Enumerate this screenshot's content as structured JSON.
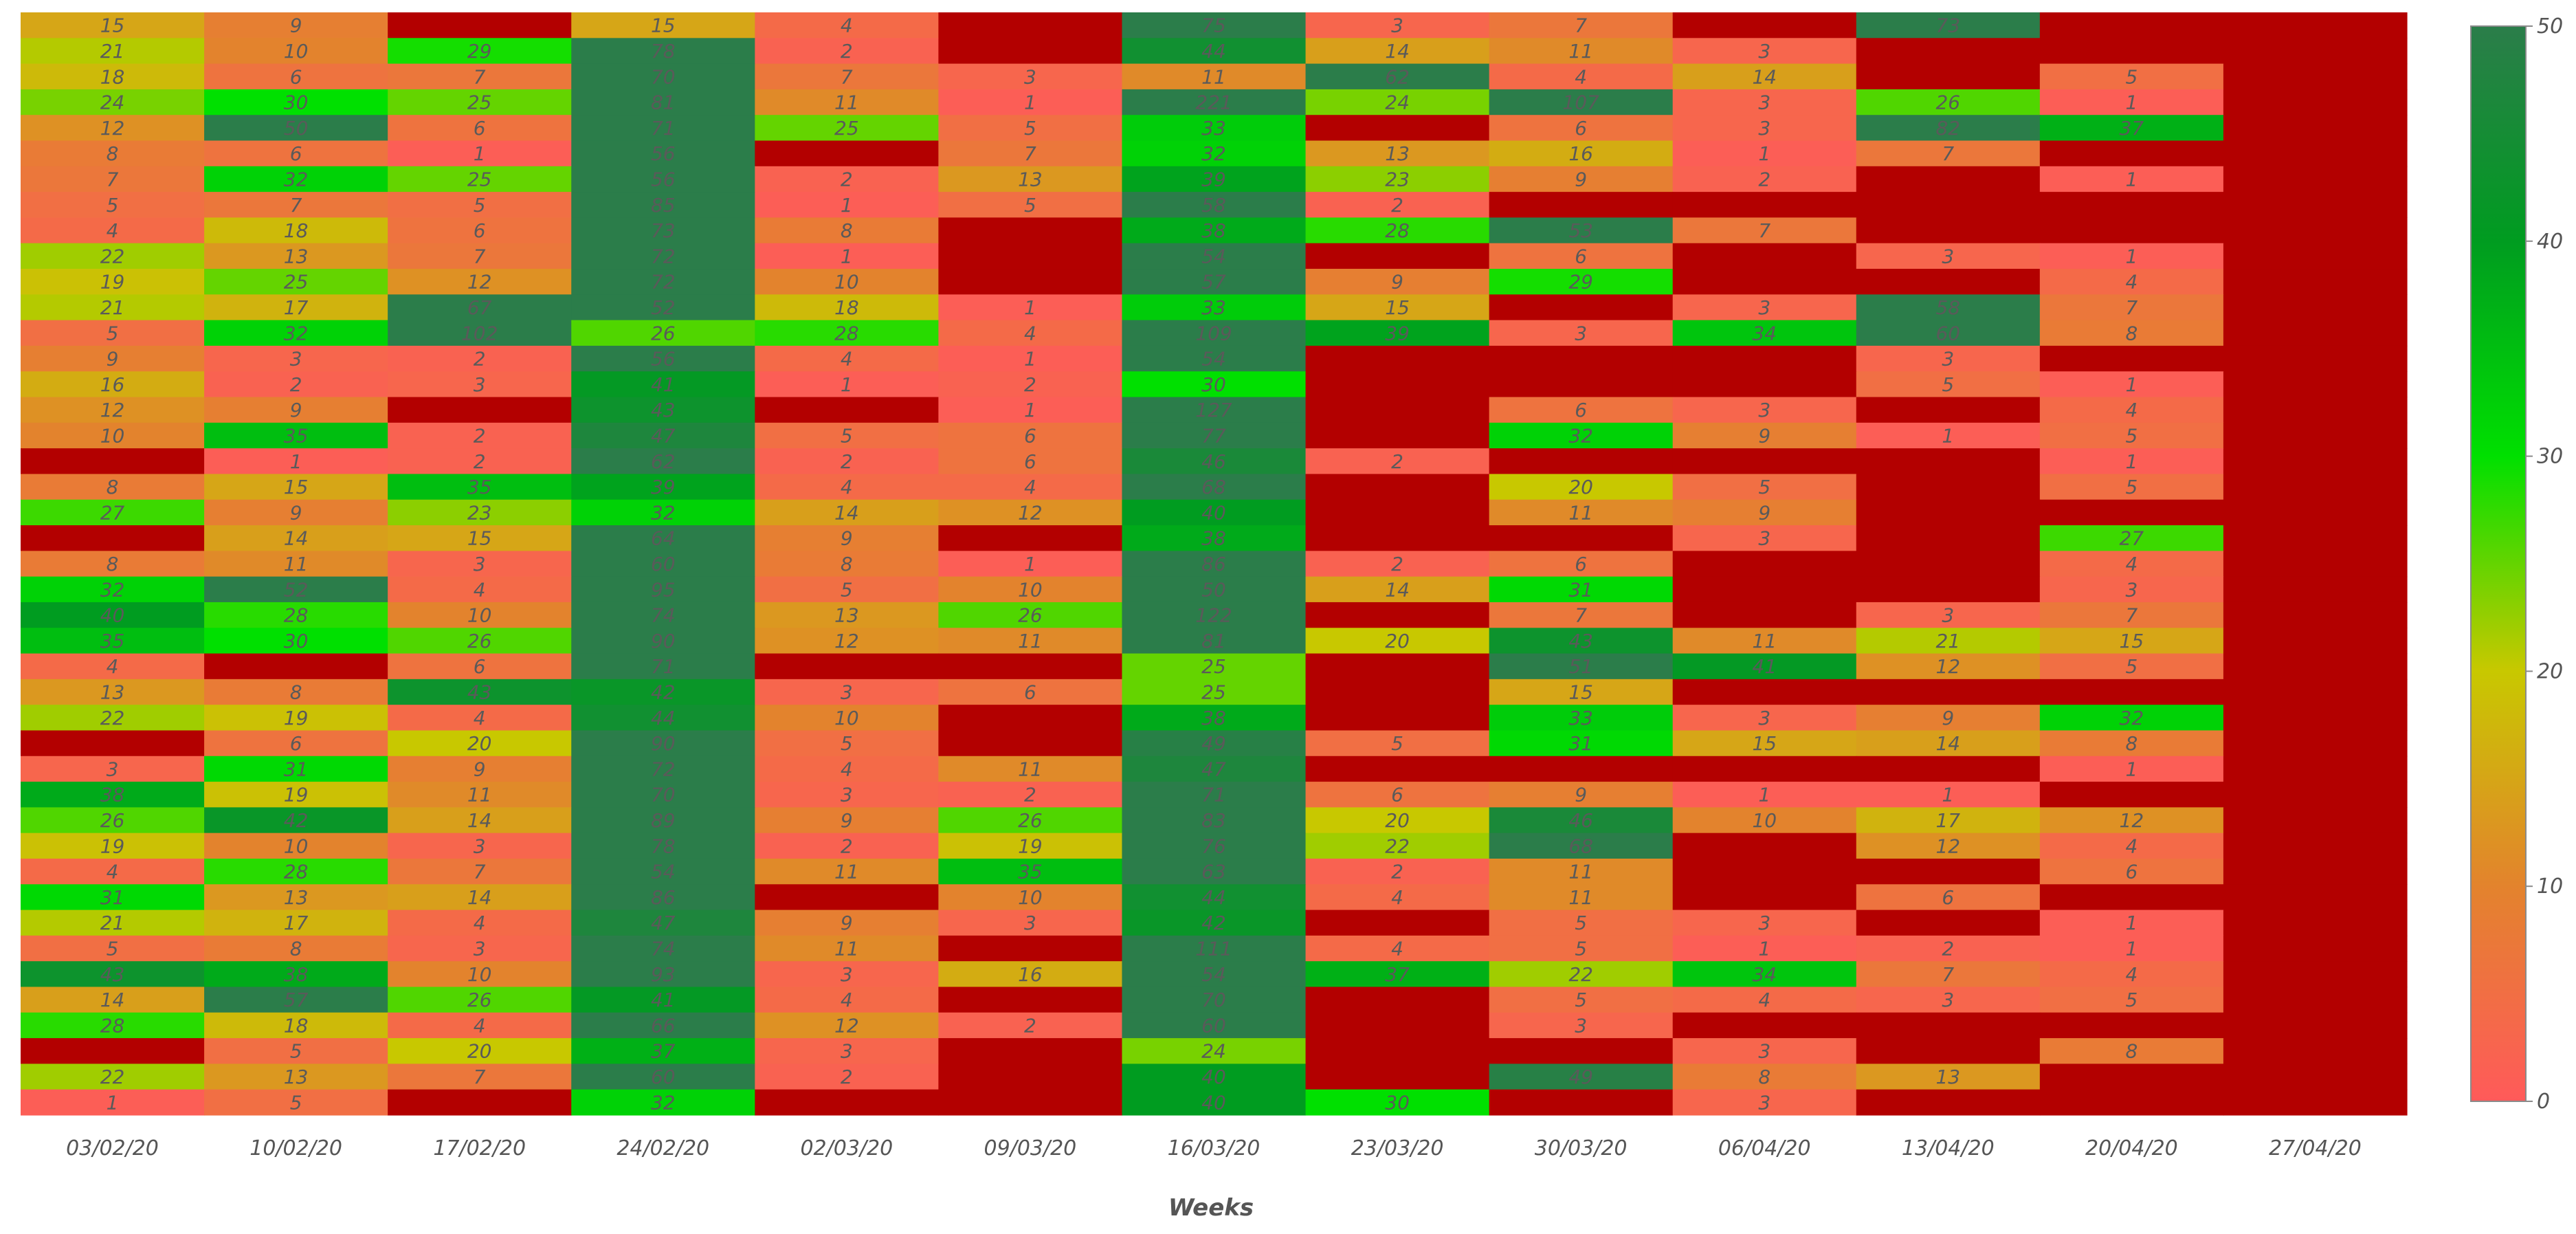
{
  "colors": {
    "empty": "#b30000",
    "scale": [
      {
        "v": 0,
        "c": "#ff5a5a"
      },
      {
        "v": 10,
        "c": "#e3832d"
      },
      {
        "v": 20,
        "c": "#c8c800"
      },
      {
        "v": 30,
        "c": "#00e000"
      },
      {
        "v": 40,
        "c": "#009c20"
      },
      {
        "v": 50,
        "c": "#2b7d4a"
      }
    ]
  },
  "chart_data": {
    "type": "heatmap",
    "title": "",
    "xlabel": "Weeks",
    "ylabel": "",
    "x": [
      "03/02/20",
      "10/02/20",
      "17/02/20",
      "24/02/20",
      "02/03/20",
      "09/03/20",
      "16/03/20",
      "23/03/20",
      "30/03/20",
      "06/04/20",
      "13/04/20",
      "20/04/20",
      "27/04/20"
    ],
    "colorbar": {
      "min": 0,
      "max": 50,
      "ticks": [
        0,
        10,
        20,
        30,
        40,
        50
      ]
    },
    "rows": [
      [
        15,
        9,
        null,
        15,
        4,
        null,
        75,
        3,
        7,
        null,
        73,
        null,
        null
      ],
      [
        21,
        10,
        29,
        78,
        2,
        null,
        44,
        14,
        11,
        3,
        null,
        null,
        null
      ],
      [
        18,
        6,
        7,
        70,
        7,
        3,
        11,
        62,
        4,
        14,
        null,
        5,
        null
      ],
      [
        24,
        30,
        25,
        81,
        11,
        1,
        221,
        24,
        107,
        3,
        26,
        1,
        null
      ],
      [
        12,
        50,
        6,
        71,
        25,
        5,
        33,
        null,
        6,
        3,
        82,
        37,
        null
      ],
      [
        8,
        6,
        1,
        56,
        null,
        7,
        32,
        13,
        16,
        1,
        7,
        null,
        null
      ],
      [
        7,
        32,
        25,
        56,
        2,
        13,
        39,
        23,
        9,
        2,
        null,
        1,
        null
      ],
      [
        5,
        7,
        5,
        85,
        1,
        5,
        58,
        2,
        null,
        null,
        null,
        null,
        null
      ],
      [
        4,
        18,
        6,
        73,
        8,
        null,
        38,
        28,
        53,
        7,
        null,
        null,
        null
      ],
      [
        22,
        13,
        7,
        72,
        1,
        null,
        54,
        null,
        6,
        null,
        3,
        1,
        null
      ],
      [
        19,
        25,
        12,
        72,
        10,
        null,
        57,
        9,
        29,
        null,
        null,
        4,
        null
      ],
      [
        21,
        17,
        67,
        52,
        18,
        1,
        33,
        15,
        null,
        3,
        58,
        7,
        null
      ],
      [
        5,
        32,
        102,
        26,
        28,
        4,
        109,
        39,
        3,
        34,
        60,
        8,
        null
      ],
      [
        9,
        3,
        2,
        56,
        4,
        1,
        54,
        null,
        null,
        null,
        3,
        null,
        null
      ],
      [
        16,
        2,
        3,
        41,
        1,
        2,
        30,
        null,
        null,
        null,
        5,
        1,
        null
      ],
      [
        12,
        9,
        null,
        43,
        null,
        1,
        127,
        null,
        6,
        3,
        null,
        4,
        null
      ],
      [
        10,
        35,
        2,
        47,
        5,
        6,
        77,
        null,
        32,
        9,
        1,
        5,
        null
      ],
      [
        null,
        1,
        2,
        62,
        2,
        6,
        46,
        2,
        null,
        null,
        null,
        1,
        null
      ],
      [
        8,
        15,
        35,
        39,
        4,
        4,
        68,
        null,
        20,
        5,
        null,
        5,
        null
      ],
      [
        27,
        9,
        23,
        32,
        14,
        12,
        40,
        null,
        11,
        9,
        null,
        null,
        null
      ],
      [
        null,
        14,
        15,
        64,
        9,
        null,
        38,
        null,
        null,
        3,
        null,
        27,
        null
      ],
      [
        8,
        11,
        3,
        60,
        8,
        1,
        86,
        2,
        6,
        null,
        null,
        4,
        null
      ],
      [
        32,
        52,
        4,
        95,
        5,
        10,
        50,
        14,
        31,
        null,
        null,
        3,
        null
      ],
      [
        40,
        28,
        10,
        74,
        13,
        26,
        122,
        null,
        7,
        null,
        3,
        7,
        null
      ],
      [
        35,
        30,
        26,
        90,
        12,
        11,
        81,
        20,
        43,
        11,
        21,
        15,
        null
      ],
      [
        4,
        null,
        6,
        71,
        null,
        null,
        25,
        null,
        51,
        41,
        12,
        5,
        null
      ],
      [
        13,
        8,
        43,
        42,
        3,
        6,
        25,
        null,
        15,
        null,
        null,
        null,
        null
      ],
      [
        22,
        19,
        4,
        44,
        10,
        null,
        38,
        null,
        33,
        3,
        9,
        32,
        null
      ],
      [
        null,
        6,
        20,
        90,
        5,
        null,
        49,
        5,
        31,
        15,
        14,
        8,
        null
      ],
      [
        3,
        31,
        9,
        72,
        4,
        11,
        47,
        null,
        null,
        null,
        null,
        1,
        null
      ],
      [
        38,
        19,
        11,
        70,
        3,
        2,
        71,
        6,
        9,
        1,
        1,
        null,
        null
      ],
      [
        26,
        42,
        14,
        89,
        9,
        26,
        83,
        20,
        46,
        10,
        17,
        12,
        null
      ],
      [
        19,
        10,
        3,
        78,
        2,
        19,
        76,
        22,
        68,
        null,
        12,
        4,
        null
      ],
      [
        4,
        28,
        7,
        54,
        11,
        35,
        63,
        2,
        11,
        null,
        null,
        6,
        null
      ],
      [
        31,
        13,
        14,
        86,
        null,
        10,
        44,
        4,
        11,
        null,
        6,
        null,
        null
      ],
      [
        21,
        17,
        4,
        47,
        9,
        3,
        42,
        null,
        5,
        3,
        null,
        1,
        null
      ],
      [
        5,
        8,
        3,
        74,
        11,
        null,
        111,
        4,
        5,
        1,
        2,
        1,
        null
      ],
      [
        43,
        38,
        10,
        93,
        3,
        16,
        54,
        37,
        22,
        34,
        7,
        4,
        null
      ],
      [
        14,
        57,
        26,
        41,
        4,
        null,
        70,
        null,
        5,
        4,
        3,
        5,
        null
      ],
      [
        28,
        18,
        4,
        66,
        12,
        2,
        60,
        null,
        3,
        null,
        null,
        null,
        null
      ],
      [
        null,
        5,
        20,
        37,
        3,
        null,
        24,
        null,
        null,
        3,
        null,
        8,
        null
      ],
      [
        22,
        13,
        7,
        60,
        2,
        null,
        40,
        null,
        49,
        8,
        13,
        null,
        null
      ],
      [
        1,
        5,
        null,
        32,
        null,
        null,
        40,
        30,
        null,
        3,
        null,
        null,
        null
      ]
    ]
  }
}
